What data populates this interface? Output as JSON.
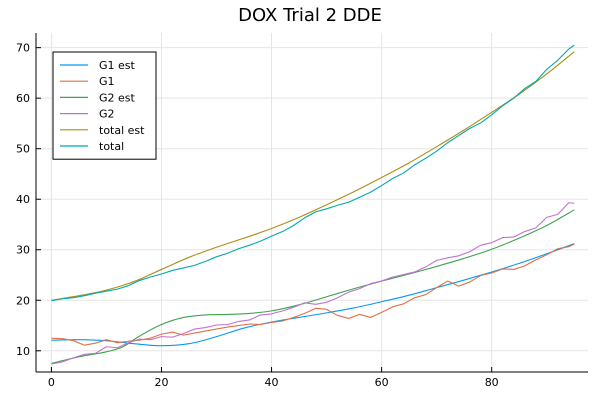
{
  "chart_data": {
    "type": "line",
    "title": "DOX Trial 2 DDE",
    "xlabel": "",
    "ylabel": "",
    "xlim": [
      -2.8,
      97.5
    ],
    "ylim": [
      5.8,
      72.9
    ],
    "xticks": [
      0,
      20,
      40,
      60,
      80
    ],
    "yticks": [
      10,
      20,
      30,
      40,
      50,
      60,
      70
    ],
    "grid": true,
    "legend_position": "top-left",
    "series": [
      {
        "name": "G1 est",
        "color": "#009af9",
        "smooth": true,
        "x": [
          0,
          5,
          10,
          15,
          20,
          25,
          30,
          35,
          40,
          45,
          50,
          55,
          60,
          65,
          70,
          75,
          80,
          85,
          90,
          95
        ],
        "y": [
          12.1,
          12.2,
          12.0,
          11.4,
          11.0,
          11.4,
          12.8,
          14.5,
          15.7,
          16.6,
          17.5,
          18.5,
          19.7,
          21.0,
          22.5,
          24.0,
          25.6,
          27.3,
          29.2,
          31.2
        ]
      },
      {
        "name": "G1",
        "color": "#e26f46",
        "smooth": false,
        "x": [
          0,
          2,
          4,
          6,
          8,
          10,
          12,
          14,
          16,
          18,
          20,
          22,
          24,
          26,
          28,
          30,
          32,
          34,
          36,
          38,
          40,
          42,
          44,
          46,
          48,
          50,
          52,
          54,
          56,
          58,
          60,
          62,
          64,
          66,
          68,
          70,
          72,
          74,
          76,
          78,
          80,
          82,
          84,
          86,
          88,
          90,
          92,
          94,
          95
        ],
        "y": [
          12.5,
          12.4,
          12.0,
          11.1,
          11.5,
          12.2,
          11.6,
          11.9,
          12.1,
          12.5,
          13.3,
          13.7,
          13.1,
          13.5,
          13.9,
          14.3,
          14.7,
          15.0,
          15.3,
          15.2,
          15.6,
          15.9,
          16.6,
          17.4,
          18.4,
          18.2,
          17.0,
          16.4,
          17.2,
          16.6,
          17.6,
          18.7,
          19.3,
          20.5,
          21.1,
          22.5,
          23.8,
          22.8,
          23.6,
          24.9,
          25.4,
          26.2,
          26.1,
          26.8,
          28.0,
          29.0,
          30.2,
          30.6,
          31.1
        ]
      },
      {
        "name": "G2 est",
        "color": "#3ea44e",
        "smooth": true,
        "x": [
          0,
          5,
          10,
          13,
          16,
          20,
          24,
          28,
          32,
          36,
          40,
          45,
          50,
          55,
          60,
          65,
          70,
          75,
          80,
          85,
          90,
          95
        ],
        "y": [
          7.5,
          8.8,
          9.8,
          10.8,
          12.9,
          15.2,
          16.6,
          17.1,
          17.2,
          17.4,
          17.9,
          19.1,
          20.7,
          22.3,
          23.8,
          25.2,
          26.7,
          28.3,
          30.1,
          32.3,
          34.8,
          37.9
        ]
      },
      {
        "name": "G2",
        "color": "#c271d2",
        "smooth": false,
        "x": [
          0,
          2,
          4,
          6,
          8,
          10,
          12,
          14,
          16,
          18,
          20,
          22,
          24,
          26,
          28,
          30,
          32,
          34,
          36,
          38,
          40,
          42,
          44,
          46,
          48,
          50,
          52,
          54,
          56,
          58,
          60,
          62,
          64,
          66,
          68,
          70,
          72,
          74,
          76,
          78,
          80,
          82,
          84,
          86,
          88,
          90,
          92,
          94,
          95
        ],
        "y": [
          7.4,
          7.8,
          8.6,
          9.3,
          9.5,
          10.8,
          10.6,
          11.6,
          12.3,
          12.2,
          12.8,
          12.7,
          13.4,
          14.3,
          14.6,
          15.1,
          15.2,
          15.8,
          16.1,
          17.1,
          17.3,
          17.9,
          18.6,
          19.5,
          19.2,
          19.6,
          20.5,
          21.6,
          22.3,
          23.3,
          23.8,
          24.6,
          25.1,
          25.6,
          26.6,
          27.9,
          28.4,
          28.8,
          29.6,
          30.9,
          31.4,
          32.4,
          32.5,
          33.6,
          34.3,
          36.4,
          37.0,
          39.3,
          39.2
        ]
      },
      {
        "name": "total est",
        "color": "#ac8d18",
        "smooth": true,
        "x": [
          0,
          5,
          10,
          15,
          20,
          25,
          30,
          35,
          40,
          45,
          50,
          55,
          60,
          65,
          70,
          75,
          80,
          85,
          90,
          95
        ],
        "y": [
          20.0,
          20.9,
          22.0,
          23.7,
          26.1,
          28.5,
          30.5,
          32.3,
          34.2,
          36.4,
          38.9,
          41.5,
          44.3,
          47.2,
          50.4,
          53.7,
          57.2,
          60.8,
          64.8,
          69.2
        ]
      },
      {
        "name": "total",
        "color": "#00a9ad",
        "smooth": false,
        "x": [
          0,
          2,
          4,
          6,
          8,
          10,
          12,
          14,
          16,
          18,
          20,
          22,
          24,
          26,
          28,
          30,
          32,
          34,
          36,
          38,
          40,
          42,
          44,
          46,
          48,
          50,
          52,
          54,
          56,
          58,
          60,
          62,
          64,
          66,
          68,
          70,
          72,
          74,
          76,
          78,
          80,
          82,
          84,
          86,
          88,
          90,
          92,
          94,
          95
        ],
        "y": [
          19.9,
          20.3,
          20.5,
          20.9,
          21.4,
          21.8,
          22.2,
          22.9,
          23.9,
          24.6,
          25.2,
          25.9,
          26.4,
          26.9,
          27.7,
          28.6,
          29.3,
          30.2,
          30.9,
          31.7,
          32.7,
          33.6,
          34.8,
          36.3,
          37.5,
          38.1,
          38.8,
          39.4,
          40.4,
          41.4,
          42.7,
          44.1,
          45.2,
          46.8,
          48.1,
          49.5,
          51.2,
          52.6,
          54.0,
          55.1,
          56.7,
          58.5,
          60.0,
          61.9,
          63.3,
          65.7,
          67.5,
          69.7,
          70.5
        ]
      }
    ]
  }
}
